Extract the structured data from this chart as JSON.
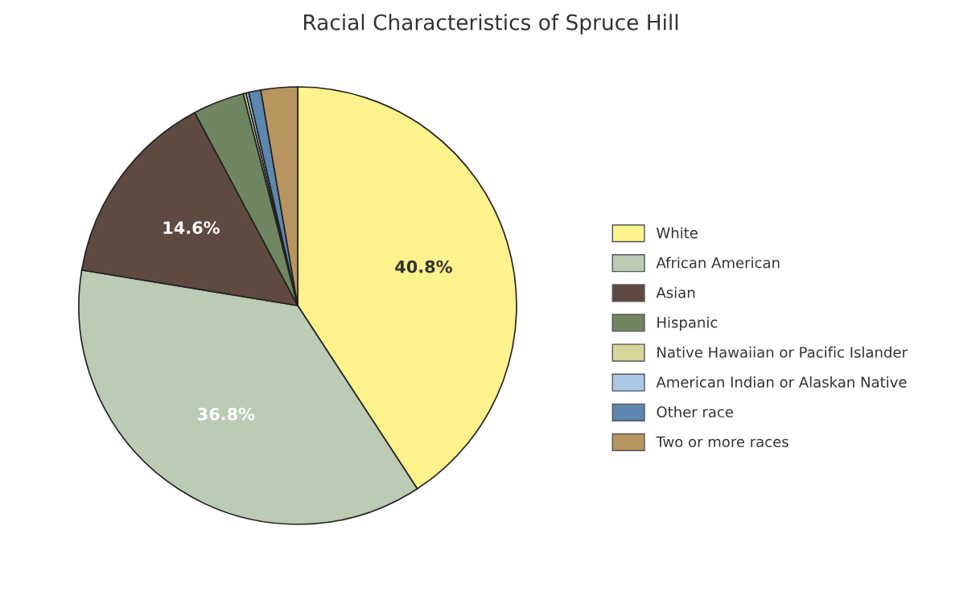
{
  "chart_data": {
    "type": "pie",
    "title": "Racial Characteristics of Spruce Hill",
    "categories": [
      "White",
      "African American",
      "Asian",
      "Hispanic",
      "Native Hawaiian or Pacific Islander",
      "American Indian or Alaskan Native",
      "Other race",
      "Two or more races"
    ],
    "values": [
      40.8,
      36.8,
      14.6,
      3.8,
      0.2,
      0.2,
      0.9,
      2.7
    ],
    "colors": [
      "#fdf28c",
      "#bccbb3",
      "#5e4a40",
      "#6f8661",
      "#d8d49a",
      "#a9c8e6",
      "#5d87ae",
      "#b8955f"
    ],
    "value_labels": [
      "40.8%",
      "36.8%",
      "14.6%",
      null,
      null,
      null,
      null,
      null
    ],
    "legend": "right"
  }
}
